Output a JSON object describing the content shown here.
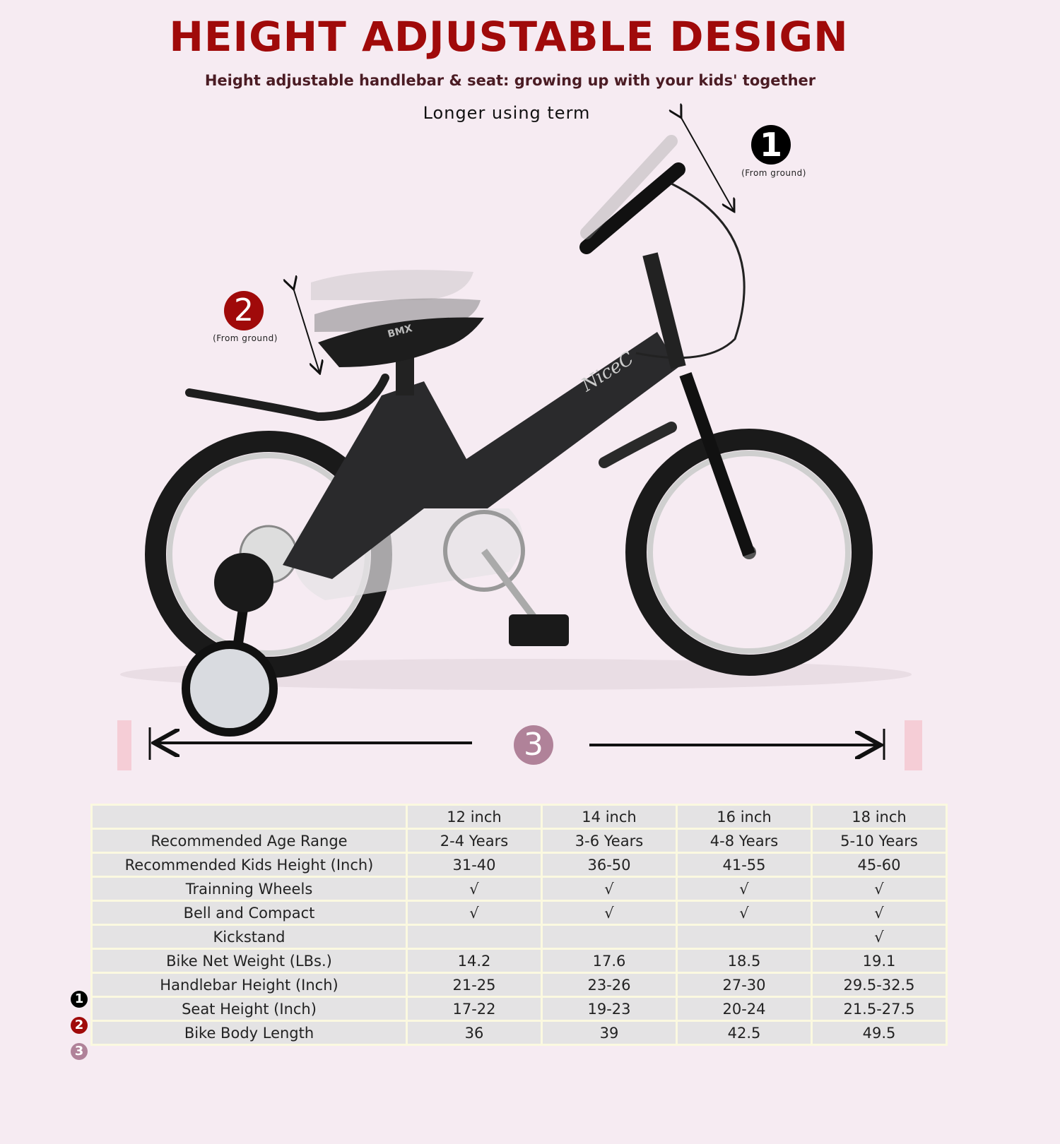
{
  "header": {
    "title": "HEIGHT ADJUSTABLE DESIGN",
    "subtitle": "Height adjustable handlebar & seat: growing up with your kids' together",
    "tagline": "Longer using term"
  },
  "callouts": [
    {
      "number": "1",
      "note": "(From ground)",
      "color": "#000000"
    },
    {
      "number": "2",
      "note": "(From ground)",
      "color": "#a00a0a"
    },
    {
      "number": "3",
      "color": "#b08299"
    }
  ],
  "bike": {
    "frame_brand": "NiceC",
    "seat_brand": "BMX"
  },
  "colors": {
    "title": "#a00a0a",
    "background": "#f6ebf2",
    "table_cell": "#e4e3e4",
    "table_border": "#fbf9e0"
  },
  "table": {
    "columns": [
      "",
      "12 inch",
      "14 inch",
      "16 inch",
      "18 inch"
    ],
    "rows": [
      {
        "marker": "",
        "label": "Recommended Age Range",
        "values": [
          "2-4 Years",
          "3-6 Years",
          "4-8 Years",
          "5-10 Years"
        ]
      },
      {
        "marker": "",
        "label": "Recommended Kids Height (Inch)",
        "values": [
          "31-40",
          "36-50",
          "41-55",
          "45-60"
        ]
      },
      {
        "marker": "",
        "label": "Trainning Wheels",
        "values": [
          "√",
          "√",
          "√",
          "√"
        ]
      },
      {
        "marker": "",
        "label": "Bell and Compact",
        "values": [
          "√",
          "√",
          "√",
          "√"
        ]
      },
      {
        "marker": "",
        "label": "Kickstand",
        "values": [
          "",
          "",
          "",
          "√"
        ]
      },
      {
        "marker": "",
        "label": "Bike Net Weight (LBs.)",
        "values": [
          "14.2",
          "17.6",
          "18.5",
          "19.1"
        ]
      },
      {
        "marker": "1",
        "label": "Handlebar Height (Inch)",
        "values": [
          "21-25",
          "23-26",
          "27-30",
          "29.5-32.5"
        ]
      },
      {
        "marker": "2",
        "label": "Seat Height (Inch)",
        "values": [
          "17-22",
          "19-23",
          "20-24",
          "21.5-27.5"
        ]
      },
      {
        "marker": "3",
        "label": "Bike Body Length",
        "values": [
          "36",
          "39",
          "42.5",
          "49.5"
        ]
      }
    ]
  }
}
